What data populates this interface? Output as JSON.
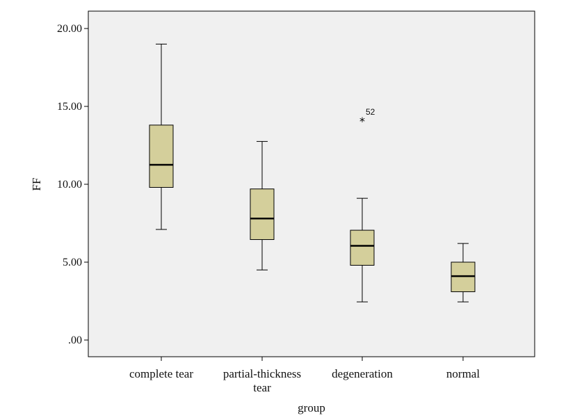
{
  "chart_data": {
    "type": "boxplot",
    "xlabel": "group",
    "ylabel": "FF",
    "ylim": [
      -1,
      21.2
    ],
    "yticks": [
      0,
      5,
      10,
      15,
      20
    ],
    "ytick_labels": [
      ".00",
      "5.00",
      "10.00",
      "15.00",
      "20.00"
    ],
    "categories": [
      {
        "label_lines": [
          "complete tear"
        ]
      },
      {
        "label_lines": [
          "partial-thickness",
          "tear"
        ]
      },
      {
        "label_lines": [
          "degeneration"
        ]
      },
      {
        "label_lines": [
          "normal"
        ]
      }
    ],
    "boxes": [
      {
        "whisker_low": 7.1,
        "q1": 9.8,
        "median": 11.25,
        "q3": 13.8,
        "whisker_high": 19.0,
        "outliers": []
      },
      {
        "whisker_low": 4.5,
        "q1": 6.45,
        "median": 7.8,
        "q3": 9.7,
        "whisker_high": 12.75,
        "outliers": []
      },
      {
        "whisker_low": 2.45,
        "q1": 4.8,
        "median": 6.05,
        "q3": 7.05,
        "whisker_high": 9.1,
        "outliers": [
          {
            "value": 14.15,
            "label": "52",
            "marker": "*"
          }
        ]
      },
      {
        "whisker_low": 2.45,
        "q1": 3.1,
        "median": 4.1,
        "q3": 5.0,
        "whisker_high": 6.2,
        "outliers": []
      }
    ],
    "colors": {
      "box_fill": "#d4cf9b",
      "plot_background": "#f0f0f0",
      "line": "#000000"
    }
  }
}
